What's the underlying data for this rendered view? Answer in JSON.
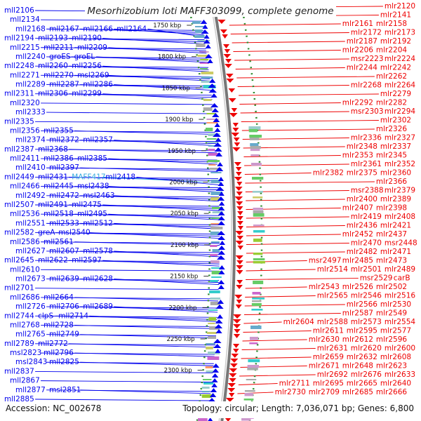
{
  "title": "Mesorhizobium loti MAFF303099, complete genome",
  "footer": {
    "accession": "Accession: NC_002678",
    "summary": "Topology: circular; Length: 7,036,071 bp; Genes: 6,800"
  },
  "colors": {
    "minus_strand": "#0000ee",
    "plus_strand": "#ee0000",
    "highlight": "#33aadd",
    "backbone": "#777777",
    "dots": "#2e8b2e"
  },
  "scale_labels": [
    "1750 kbp",
    "1800 kbp",
    "1850 kbp",
    "1900 kbp",
    "1950 kbp",
    "2000 kbp",
    "2050 kbp",
    "2100 kbp",
    "2150 kbp",
    "2200 kbp",
    "2250 kbp",
    "2300 kbp"
  ],
  "left_labels": [
    [
      "mll2106"
    ],
    [
      "mll2134"
    ],
    [
      "mll2168",
      "mll2167",
      "mll2166",
      "mll2164"
    ],
    [
      "mll2194",
      "mll2193",
      "mll2190"
    ],
    [
      "mll2215",
      "mll2211",
      "mll2209"
    ],
    [
      "mll2240",
      "groES",
      "groEL"
    ],
    [
      "mll2248",
      "mll2260",
      "mll2256"
    ],
    [
      "mll2271",
      "mll2270",
      "msl2269"
    ],
    [
      "mll2289",
      "mll2287",
      "mll2286"
    ],
    [
      "mll2311",
      "mll2306",
      "mll2299"
    ],
    [
      "mll2320"
    ],
    [
      "mll2333"
    ],
    [
      "mll2335"
    ],
    [
      "mll2356",
      "mll2355"
    ],
    [
      "mll2374",
      "mll2372",
      "mll2357"
    ],
    [
      "mll2387",
      "mll2368"
    ],
    [
      "mll2411",
      "mll2386",
      "mll2385"
    ],
    [
      "mll2410",
      "mll2397"
    ],
    [
      "mll2449",
      "mll2431",
      "MAFF417",
      "mll2418"
    ],
    [
      "mll2466",
      "mll2445",
      "msl2438"
    ],
    [
      "mll2492",
      "mll2472",
      "msl2463"
    ],
    [
      "mll2507",
      "mll2491",
      "mll2475"
    ],
    [
      "mll2536",
      "mll2518",
      "mll2495"
    ],
    [
      "mll2551",
      "mll2533",
      "mll2512"
    ],
    [
      "mll2582",
      "greA",
      "msl2540"
    ],
    [
      "mll2586",
      "mll2561"
    ],
    [
      "mll2627",
      "mll2607",
      "mll2578"
    ],
    [
      "mll2645",
      "mll2622",
      "mll2597"
    ],
    [
      "mll2610"
    ],
    [
      "mll2673",
      "mll2639",
      "mll2628"
    ],
    [
      "mll2701"
    ],
    [
      "mll2686",
      "mll2664"
    ],
    [
      "mll2726",
      "mll2706",
      "mll2689"
    ],
    [
      "mll2744",
      "clpS",
      "mll2714"
    ],
    [
      "mll2768",
      "mll2728"
    ],
    [
      "mll2765",
      "mll2749"
    ],
    [
      "mll2789",
      "mll2772"
    ],
    [
      "msl2823",
      "mll2796"
    ],
    [
      "msl2843",
      "mll2825"
    ],
    [
      "mll2837"
    ],
    [
      "mll2867"
    ],
    [
      "mll2877",
      "msl2851"
    ],
    [
      "mll2885"
    ]
  ],
  "right_labels": [
    [
      "mlr2120"
    ],
    [
      "mlr2141"
    ],
    [
      "mlr2161",
      "mlr2158"
    ],
    [
      "mlr2172",
      "mlr2173"
    ],
    [
      "mlr2187",
      "mlr2192"
    ],
    [
      "mlr2206",
      "mlr2204"
    ],
    [
      "msr2223",
      "mlr2224"
    ],
    [
      "mlr2244",
      "mlr2242"
    ],
    [
      "mlr2262"
    ],
    [
      "mlr2268",
      "mlr2264"
    ],
    [
      "mlr2279"
    ],
    [
      "mlr2292",
      "mlr2282"
    ],
    [
      "msr2303",
      "mlr2294"
    ],
    [
      "mlr2302"
    ],
    [
      "mlr2326"
    ],
    [
      "mlr2336",
      "mlr2327"
    ],
    [
      "mlr2348",
      "mlr2337"
    ],
    [
      "mlr2353",
      "mlr2345"
    ],
    [
      "mlr2361",
      "mlr2352"
    ],
    [
      "mlr2382",
      "mlr2375",
      "mlr2360"
    ],
    [
      "mlr2366"
    ],
    [
      "msr2388",
      "mlr2379"
    ],
    [
      "mlr2400",
      "mlr2389"
    ],
    [
      "mlr2407",
      "mlr2398"
    ],
    [
      "mlr2419",
      "mlr2408"
    ],
    [
      "mlr2436",
      "mlr2421"
    ],
    [
      "mlr2452",
      "mlr2437"
    ],
    [
      "mlr2470",
      "msr2448"
    ],
    [
      "mlr2482",
      "mlr2471"
    ],
    [
      "msr2497",
      "mlr2485",
      "mlr2473"
    ],
    [
      "mlr2514",
      "mlr2501",
      "mlr2489"
    ],
    [
      "msr2529",
      "carB"
    ],
    [
      "mlr2543",
      "mlr2526",
      "mlr2502"
    ],
    [
      "mlr2565",
      "mlr2546",
      "mlr2516"
    ],
    [
      "mlr2566",
      "mlr2530"
    ],
    [
      "mlr2587",
      "mlr2549"
    ],
    [
      "mlr2604",
      "mlr2588",
      "mlr2573",
      "mlr2554"
    ],
    [
      "mlr2611",
      "mlr2595",
      "mlr2577"
    ],
    [
      "mlr2630",
      "mlr2612",
      "mlr2596"
    ],
    [
      "mlr2631",
      "mlr2620",
      "mlr2600"
    ],
    [
      "mlr2659",
      "mlr2632",
      "mlr2608"
    ],
    [
      "mlr2671",
      "mlr2648",
      "mlr2623"
    ],
    [
      "mlr2692",
      "mlr2676",
      "mlr2633"
    ],
    [
      "mlr2711",
      "mlr2695",
      "mlr2665",
      "mlr2640"
    ],
    [
      "mlr2730",
      "mlr2709",
      "mlr2685",
      "mlr2666"
    ]
  ]
}
